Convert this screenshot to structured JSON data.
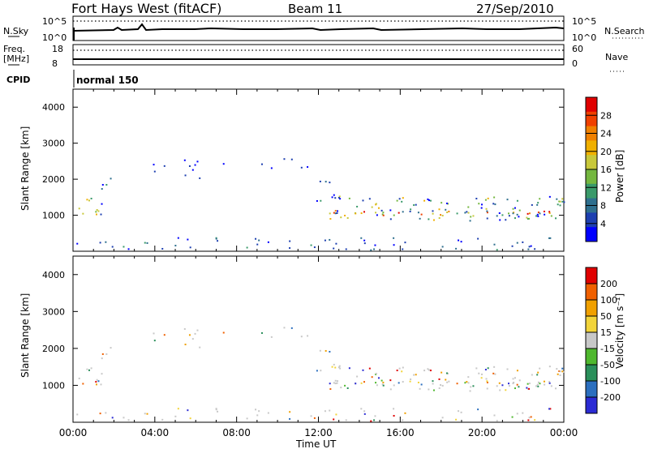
{
  "header": {
    "title": "Fort Hays West (fitACF)",
    "beam": "Beam 11",
    "date": "27/Sep/2010"
  },
  "strips": {
    "nsky_label": "N.Sky",
    "nsearch_label": "N.Search",
    "nsky_ticks": [
      "10^5",
      "10^0"
    ],
    "nsearch_ticks": [
      "10^5",
      "10^0"
    ],
    "freq_label_1": "Freq.",
    "freq_label_2": "[MHz]",
    "freq_ticks": [
      "18",
      "8"
    ],
    "nave_label": "Nave",
    "nave_ticks": [
      "60",
      "0"
    ],
    "cpid_label": "CPID",
    "cpid_value": "normal 150"
  },
  "chart_data": [
    {
      "type": "heatmap",
      "name": "power",
      "ylabel": "Slant Range [km]",
      "yticks": [
        "1000",
        "2000",
        "3000",
        "4000"
      ],
      "ylim": [
        0,
        4500
      ],
      "xlim": [
        0,
        24
      ],
      "colorbar_label": "Power [dB]",
      "colorbar_ticks": [
        "4",
        "8",
        "12",
        "16",
        "20",
        "24",
        "28"
      ],
      "colorbar_colors": [
        "#0000ff",
        "#1d3fb0",
        "#2e6f8e",
        "#3a9a6a",
        "#74b73f",
        "#c8c83a",
        "#f0b000",
        "#f08000",
        "#f04000",
        "#e00000"
      ],
      "scatter_regions": [
        {
          "x": [
            0.1,
            1.6
          ],
          "range": [
            950,
            1500
          ],
          "level": 0.6
        },
        {
          "x": [
            1.0,
            2.5
          ],
          "range": [
            1700,
            2100
          ],
          "level": 0.3
        },
        {
          "x": [
            2.5,
            8.5
          ],
          "range": [
            1950,
            2500
          ],
          "level": 0.15
        },
        {
          "x": [
            8.5,
            11.8
          ],
          "range": [
            2000,
            2400
          ],
          "level": 0.2
        },
        {
          "x": [
            11.8,
            12.8
          ],
          "range": [
            1300,
            2200
          ],
          "level": 0.35
        },
        {
          "x": [
            12.5,
            24.0
          ],
          "range": [
            850,
            1550
          ],
          "level": 0.55
        },
        {
          "x": [
            12.5,
            24.0
          ],
          "range": [
            1000,
            1150
          ],
          "level": 0.9
        },
        {
          "x": [
            0.1,
            24.0
          ],
          "range": [
            50,
            400
          ],
          "level": 0.3
        }
      ]
    },
    {
      "type": "heatmap",
      "name": "velocity",
      "ylabel": "Slant Range [km]",
      "yticks": [
        "1000",
        "2000",
        "3000",
        "4000"
      ],
      "ylim": [
        0,
        4500
      ],
      "xlim": [
        0,
        24
      ],
      "xlabel": "Time UT",
      "xticks": [
        "00:00",
        "04:00",
        "08:00",
        "12:00",
        "16:00",
        "20:00",
        "00:00"
      ],
      "colorbar_label": "Velocity [m s⁻¹]",
      "colorbar_ticks": [
        "200",
        "100",
        "50",
        "15",
        "-15",
        "-50",
        "-100",
        "-200"
      ],
      "colorbar_colors": [
        "#2b2bd4",
        "#2b6fbf",
        "#2a8f5a",
        "#4fb82e",
        "#c8c8c8",
        "#f2d43a",
        "#f0a000",
        "#f06000",
        "#e00000"
      ]
    }
  ]
}
